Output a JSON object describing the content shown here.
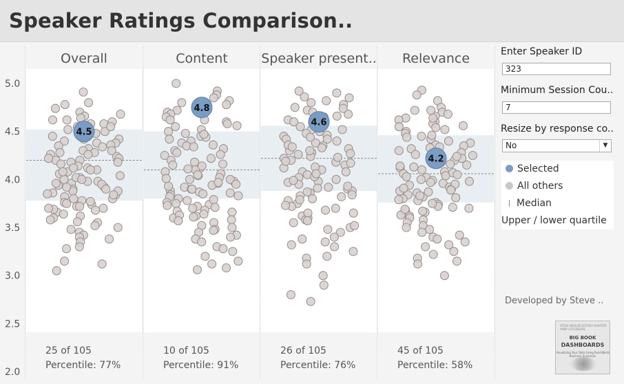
{
  "page": {
    "title": "Speaker Ratings Comparison.."
  },
  "chart_data": {
    "type": "scatter",
    "variant": "jittered strip plot",
    "y_ticks": [
      "5.0",
      "4.5",
      "4.0",
      "3.5",
      "3.0",
      "2.5",
      "2.0"
    ],
    "ylim": [
      2.0,
      5.1
    ],
    "colors": {
      "selected": "#7b9cc4",
      "others": "#d8d2d0",
      "quartile_band": "#e8eef2",
      "median": "#8a8a8a"
    },
    "panels": [
      {
        "name": "Overall",
        "selected": 4.5,
        "selected_label": "4.5",
        "median": 4.2,
        "q1": 3.78,
        "q3": 4.52,
        "rank_text": "25 of 105",
        "percentile_text": "Percentile: 77%",
        "points": [
          4.91,
          4.8,
          4.74,
          4.78,
          4.7,
          4.66,
          4.62,
          4.6,
          4.58,
          4.55,
          4.52,
          4.5,
          4.48,
          4.45,
          4.42,
          4.4,
          4.38,
          4.35,
          4.32,
          4.3,
          4.28,
          4.26,
          4.24,
          4.22,
          4.2,
          4.2,
          4.18,
          4.16,
          4.14,
          4.12,
          4.1,
          4.08,
          4.06,
          4.04,
          4.02,
          4.0,
          3.98,
          3.96,
          3.94,
          3.92,
          3.9,
          3.88,
          3.86,
          3.84,
          3.82,
          3.8,
          3.78,
          3.76,
          3.74,
          3.72,
          3.7,
          3.68,
          3.66,
          3.64,
          3.62,
          3.6,
          3.58,
          3.56,
          3.55,
          3.52,
          3.5,
          3.48,
          3.45,
          3.42,
          3.4,
          3.38,
          3.35,
          3.3,
          3.28,
          3.15,
          3.12,
          3.05,
          4.62,
          4.58,
          4.55,
          4.42,
          4.38,
          4.36,
          4.34,
          4.28,
          4.26,
          4.22,
          4.18,
          4.12,
          4.08,
          4.02,
          3.98,
          3.95,
          3.92,
          3.88,
          3.85,
          3.8,
          3.77,
          3.72,
          3.69,
          4.68,
          4.64,
          4.3,
          4.1,
          4.0,
          3.96,
          3.9,
          3.84,
          3.75,
          3.7
        ]
      },
      {
        "name": "Content",
        "selected": 4.75,
        "selected_label": "4.8",
        "median": 4.1,
        "q1": 3.8,
        "q3": 4.5,
        "rank_text": "10 of 105",
        "percentile_text": "Percentile: 91%",
        "points": [
          5.0,
          4.92,
          4.88,
          4.85,
          4.82,
          4.8,
          4.78,
          4.72,
          4.7,
          4.68,
          4.65,
          4.62,
          4.6,
          4.58,
          4.55,
          4.52,
          4.5,
          4.48,
          4.45,
          4.42,
          4.4,
          4.38,
          4.35,
          4.32,
          4.3,
          4.28,
          4.25,
          4.22,
          4.2,
          4.18,
          4.15,
          4.12,
          4.1,
          4.08,
          4.06,
          4.04,
          4.02,
          4.0,
          3.98,
          3.96,
          3.94,
          3.92,
          3.9,
          3.88,
          3.86,
          3.84,
          3.82,
          3.8,
          3.78,
          3.76,
          3.74,
          3.72,
          3.7,
          3.68,
          3.66,
          3.64,
          3.62,
          3.6,
          3.58,
          3.55,
          3.52,
          3.5,
          3.48,
          3.45,
          3.42,
          3.4,
          3.38,
          3.35,
          3.3,
          3.28,
          3.25,
          3.2,
          3.15,
          3.12,
          3.08,
          3.06,
          4.62,
          4.56,
          4.44,
          4.36,
          4.34,
          4.26,
          4.16,
          4.14,
          4.05,
          4.0,
          3.97,
          3.93,
          3.9,
          3.87,
          3.83,
          3.79,
          3.75,
          3.71,
          3.67,
          3.63,
          4.47,
          4.11,
          4.01,
          3.95,
          3.85,
          3.73,
          3.61,
          3.57,
          3.47
        ]
      },
      {
        "name": "Speaker present..",
        "selected": 4.6,
        "selected_label": "4.6",
        "median": 4.22,
        "q1": 3.88,
        "q3": 4.56,
        "rank_text": "26 of 105",
        "percentile_text": "Percentile: 76%",
        "points": [
          4.92,
          4.9,
          4.86,
          4.85,
          4.82,
          4.8,
          4.78,
          4.75,
          4.72,
          4.7,
          4.68,
          4.65,
          4.62,
          4.6,
          4.58,
          4.55,
          4.52,
          4.5,
          4.48,
          4.45,
          4.42,
          4.4,
          4.38,
          4.35,
          4.32,
          4.3,
          4.28,
          4.26,
          4.24,
          4.22,
          4.2,
          4.18,
          4.15,
          4.12,
          4.1,
          4.08,
          4.05,
          4.02,
          4.0,
          3.98,
          3.95,
          3.92,
          3.9,
          3.88,
          3.86,
          3.84,
          3.82,
          3.8,
          3.78,
          3.75,
          3.72,
          3.7,
          3.68,
          3.65,
          3.62,
          3.6,
          3.58,
          3.55,
          3.5,
          3.48,
          3.45,
          3.4,
          3.38,
          3.35,
          3.32,
          3.3,
          3.25,
          3.2,
          3.18,
          3.12,
          3.0,
          2.9,
          2.8,
          2.73,
          4.74,
          4.66,
          4.64,
          4.56,
          4.46,
          4.44,
          4.36,
          4.34,
          4.3,
          4.27,
          4.23,
          4.17,
          4.13,
          4.08,
          4.03,
          3.97,
          3.93,
          3.87,
          3.83,
          3.79,
          3.73,
          3.65,
          3.57,
          3.52,
          4.52,
          4.42,
          4.33,
          4.19,
          4.06,
          3.99,
          3.91
        ]
      },
      {
        "name": "Relevance",
        "selected": 4.22,
        "selected_label": "4.2",
        "median": 4.06,
        "q1": 3.76,
        "q3": 4.46,
        "rank_text": "45 of 105",
        "percentile_text": "Percentile: 58%",
        "points": [
          4.93,
          4.88,
          4.82,
          4.75,
          4.72,
          4.7,
          4.68,
          4.66,
          4.64,
          4.62,
          4.6,
          4.58,
          4.55,
          4.52,
          4.5,
          4.48,
          4.45,
          4.42,
          4.4,
          4.38,
          4.35,
          4.32,
          4.3,
          4.28,
          4.25,
          4.22,
          4.2,
          4.18,
          4.15,
          4.12,
          4.1,
          4.08,
          4.06,
          4.04,
          4.02,
          4.0,
          3.98,
          3.96,
          3.94,
          3.92,
          3.9,
          3.88,
          3.86,
          3.84,
          3.82,
          3.8,
          3.78,
          3.76,
          3.74,
          3.72,
          3.7,
          3.68,
          3.66,
          3.64,
          3.62,
          3.6,
          3.58,
          3.55,
          3.52,
          3.5,
          3.48,
          3.45,
          3.42,
          3.4,
          3.38,
          3.35,
          3.32,
          3.3,
          3.25,
          3.22,
          3.18,
          3.15,
          3.12,
          3.0,
          4.72,
          4.64,
          4.56,
          4.44,
          4.36,
          4.33,
          4.26,
          4.24,
          4.16,
          4.13,
          4.07,
          4.03,
          3.99,
          3.95,
          3.91,
          3.87,
          3.83,
          3.79,
          3.75,
          3.71,
          3.67,
          3.63,
          4.54,
          4.46,
          4.34,
          4.14,
          4.05,
          3.97,
          3.89,
          3.81,
          3.69
        ]
      }
    ]
  },
  "filters": {
    "speaker_id": {
      "label": "Enter Speaker ID",
      "value": "323"
    },
    "min_session": {
      "label": "Minimum Session Cou..",
      "value": "7"
    },
    "resize": {
      "label": "Resize by response co..",
      "value": "No"
    }
  },
  "legend": {
    "selected": "Selected",
    "others": "All others",
    "median": "Median",
    "quartile": "Upper / lower quartile"
  },
  "credit": {
    "developer": "Developed by Steve ..",
    "book_top": "STEVE WEXLER  JEFFREY SHAFFER  ANDY COTGREAVE",
    "book_title1": "BIG BOOK",
    "book_title2": "DASHBOARDS",
    "book_sub": "Visualizing Your Data Using Real-World Business Scenarios"
  }
}
